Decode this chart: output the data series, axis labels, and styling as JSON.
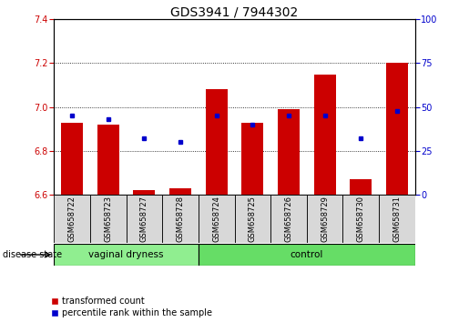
{
  "title": "GDS3941 / 7944302",
  "samples": [
    "GSM658722",
    "GSM658723",
    "GSM658727",
    "GSM658728",
    "GSM658724",
    "GSM658725",
    "GSM658726",
    "GSM658729",
    "GSM658730",
    "GSM658731"
  ],
  "groups": [
    "vaginal dryness",
    "vaginal dryness",
    "vaginal dryness",
    "vaginal dryness",
    "control",
    "control",
    "control",
    "control",
    "control",
    "control"
  ],
  "red_values": [
    6.93,
    6.92,
    6.62,
    6.63,
    7.08,
    6.93,
    6.99,
    7.15,
    6.67,
    7.2
  ],
  "blue_values_pct": [
    45,
    43,
    32,
    30,
    45,
    40,
    45,
    45,
    32,
    48
  ],
  "ylim_left": [
    6.6,
    7.4
  ],
  "ylim_right": [
    0,
    100
  ],
  "yticks_left": [
    6.6,
    6.8,
    7.0,
    7.2,
    7.4
  ],
  "yticks_right": [
    0,
    25,
    50,
    75,
    100
  ],
  "bar_color": "#CC0000",
  "dot_color": "#0000CC",
  "bar_width": 0.6,
  "base_value": 6.6,
  "grid_dotted_values": [
    6.8,
    7.0,
    7.2
  ],
  "legend_items": [
    "transformed count",
    "percentile rank within the sample"
  ],
  "disease_state_label": "disease state",
  "title_fontsize": 10,
  "tick_fontsize": 7,
  "label_fontsize": 7.5,
  "group_color_vaginal": "#90EE90",
  "group_color_control": "#66DD66",
  "label_bg": "#D8D8D8"
}
